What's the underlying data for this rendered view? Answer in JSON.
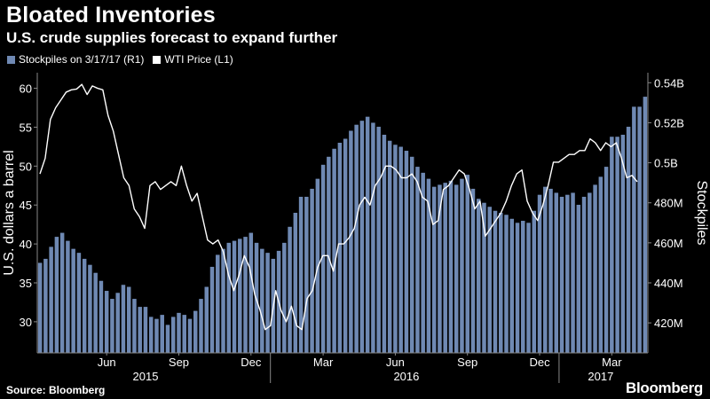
{
  "chart_data": {
    "type": "bar+line",
    "title": "Bloated Inventories",
    "subtitle": "U.S. crude supplies forecast to expand further",
    "source": "Source: Bloomberg",
    "brand": "Bloomberg",
    "left_axis": {
      "label": "U.S. dollars a barrel",
      "range": [
        26,
        62
      ],
      "ticks": [
        30,
        35,
        40,
        45,
        50,
        55,
        60
      ]
    },
    "right_axis": {
      "label": "Stockpiles",
      "range": [
        405000000,
        545000000
      ],
      "ticks": [
        420000000,
        440000000,
        460000000,
        480000000,
        500000000,
        520000000,
        540000000
      ],
      "tick_labels": [
        "420M",
        "440M",
        "460M",
        "480M",
        "0.5B",
        "0.52B",
        "0.54B"
      ]
    },
    "x_axis": {
      "months": [
        {
          "label": "Jun",
          "week": 12
        },
        {
          "label": "Sep",
          "week": 25
        },
        {
          "label": "Dec",
          "week": 38
        },
        {
          "label": "Mar",
          "week": 51
        },
        {
          "label": "Jun",
          "week": 64
        },
        {
          "label": "Sep",
          "week": 77
        },
        {
          "label": "Dec",
          "week": 90
        },
        {
          "label": "Mar",
          "week": 103
        }
      ],
      "years": [
        {
          "label": "2015",
          "week": 19
        },
        {
          "label": "2016",
          "week": 66
        },
        {
          "label": "2017",
          "week": 101
        }
      ],
      "year_dividers": [
        42,
        94
      ]
    },
    "series": [
      {
        "name": "Stockpiles on 3/17/17 (R1)",
        "type": "bar",
        "axis": "right",
        "color": "#6f89b3",
        "values": [
          450000000,
          452000000,
          458000000,
          463000000,
          465000000,
          461000000,
          457000000,
          455000000,
          452000000,
          449000000,
          445000000,
          441000000,
          436000000,
          432000000,
          435000000,
          439000000,
          438000000,
          432000000,
          428000000,
          428000000,
          423000000,
          422000000,
          424000000,
          419000000,
          423000000,
          425000000,
          424000000,
          422000000,
          426000000,
          432000000,
          438000000,
          448000000,
          454000000,
          457000000,
          460000000,
          461000000,
          462000000,
          463000000,
          465000000,
          460000000,
          457000000,
          455000000,
          452000000,
          456000000,
          460000000,
          468000000,
          475000000,
          483000000,
          483000000,
          487000000,
          492000000,
          499000000,
          503000000,
          507000000,
          510000000,
          512000000,
          516000000,
          519000000,
          521000000,
          523000000,
          520000000,
          518000000,
          514000000,
          511000000,
          509000000,
          508000000,
          506000000,
          503000000,
          498000000,
          495000000,
          492000000,
          488000000,
          489000000,
          490000000,
          491000000,
          489000000,
          492000000,
          494000000,
          487000000,
          482000000,
          480000000,
          478000000,
          476000000,
          475000000,
          474000000,
          472000000,
          470000000,
          471000000,
          470000000,
          476000000,
          484000000,
          488000000,
          487000000,
          485000000,
          483000000,
          484000000,
          485000000,
          479000000,
          483000000,
          485000000,
          489000000,
          493000000,
          498000000,
          513000000,
          513000000,
          514000000,
          518000000,
          528000000,
          528000000,
          533000000
        ]
      },
      {
        "name": "WTI Price (L1)",
        "type": "line",
        "axis": "left",
        "color": "#ffffff",
        "values": [
          49,
          51,
          56,
          57.5,
          58.5,
          59.5,
          59.8,
          59.9,
          60.5,
          59.2,
          60.3,
          60,
          59.8,
          56.5,
          54.5,
          51.5,
          48.5,
          47.5,
          44.5,
          43.5,
          42,
          47.5,
          48,
          47,
          47.5,
          48,
          47.5,
          50,
          47.5,
          45.5,
          46.5,
          43.5,
          40.5,
          40,
          40.5,
          39,
          36,
          34,
          36,
          38.5,
          37,
          33.5,
          31.5,
          29,
          29.5,
          34,
          31.5,
          30,
          32,
          29.5,
          29,
          33,
          34,
          37,
          38.5,
          38.5,
          36.5,
          40,
          40,
          40.8,
          42,
          45,
          46,
          45,
          47.5,
          48.5,
          50,
          50,
          49.5,
          48.5,
          48.5,
          49,
          48,
          46,
          45.5,
          42.5,
          43,
          47,
          47.5,
          48.5,
          49.5,
          49,
          47,
          44.5,
          45.5,
          41,
          42,
          43,
          44,
          45.5,
          47.5,
          49,
          49.5,
          45.5,
          44,
          43,
          45,
          47.5,
          50.5,
          50.5,
          51,
          51.5,
          51.5,
          52,
          52,
          53.5,
          53,
          52,
          53,
          52.5,
          53,
          51,
          48.5,
          48.8,
          48
        ]
      }
    ]
  }
}
